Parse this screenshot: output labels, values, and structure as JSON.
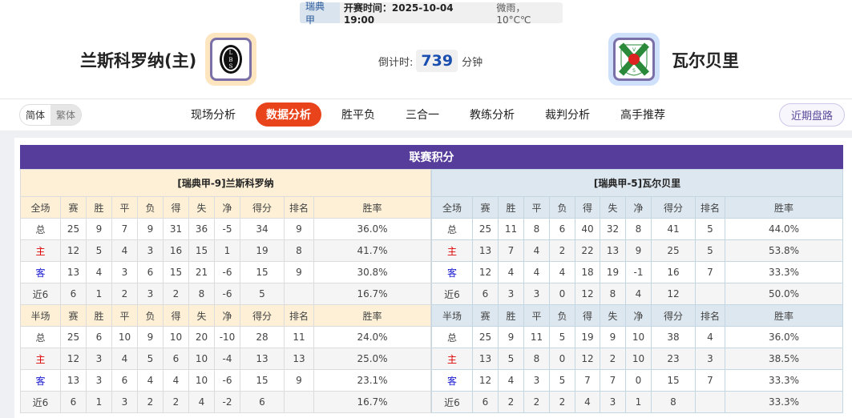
{
  "match": {
    "league": "瑞典甲",
    "time": "开赛时间：2025-10-04 19:00",
    "weather": "微雨， 10°C℃",
    "home": "兰斯科罗纳(主)",
    "away": "瓦尔贝里",
    "countdown_label": "倒计时:",
    "countdown_value": "739",
    "countdown_unit": "分钟"
  },
  "lang": {
    "simplified": "简体",
    "traditional": "繁体"
  },
  "tabs": [
    "现场分析",
    "数据分析",
    "胜平负",
    "三合一",
    "教练分析",
    "裁判分析",
    "高手推荐"
  ],
  "active_tab": "数据分析",
  "recent_button": "近期盘路",
  "colors": {
    "accent": "#e8431a",
    "title_bar": "#563d9c",
    "home_label": "#dd0000",
    "away_label": "#1a1ad0"
  },
  "standings": {
    "title": "联赛积分",
    "headers_full": [
      "全场",
      "赛",
      "胜",
      "平",
      "负",
      "得",
      "失",
      "净",
      "得分",
      "排名",
      "胜率"
    ],
    "headers_half": [
      "半场",
      "赛",
      "胜",
      "平",
      "负",
      "得",
      "失",
      "净",
      "得分",
      "排名",
      "胜率"
    ],
    "home": {
      "caption": "[瑞典甲-9]兰斯科罗纳",
      "full": [
        [
          "总",
          "25",
          "9",
          "7",
          "9",
          "31",
          "36",
          "-5",
          "34",
          "9",
          "36.0%"
        ],
        [
          "主",
          "12",
          "5",
          "4",
          "3",
          "16",
          "15",
          "1",
          "19",
          "8",
          "41.7%"
        ],
        [
          "客",
          "13",
          "4",
          "3",
          "6",
          "15",
          "21",
          "-6",
          "15",
          "9",
          "30.8%"
        ],
        [
          "近6",
          "6",
          "1",
          "2",
          "3",
          "2",
          "8",
          "-6",
          "5",
          "",
          "16.7%"
        ]
      ],
      "half": [
        [
          "总",
          "25",
          "6",
          "10",
          "9",
          "10",
          "20",
          "-10",
          "28",
          "11",
          "24.0%"
        ],
        [
          "主",
          "12",
          "3",
          "4",
          "5",
          "6",
          "10",
          "-4",
          "13",
          "13",
          "25.0%"
        ],
        [
          "客",
          "13",
          "3",
          "6",
          "4",
          "4",
          "10",
          "-6",
          "15",
          "9",
          "23.1%"
        ],
        [
          "近6",
          "6",
          "1",
          "3",
          "2",
          "2",
          "4",
          "-2",
          "6",
          "",
          "16.7%"
        ]
      ]
    },
    "away": {
      "caption": "[瑞典甲-5]瓦尔贝里",
      "full": [
        [
          "总",
          "25",
          "11",
          "8",
          "6",
          "40",
          "32",
          "8",
          "41",
          "5",
          "44.0%"
        ],
        [
          "主",
          "13",
          "7",
          "4",
          "2",
          "22",
          "13",
          "9",
          "25",
          "5",
          "53.8%"
        ],
        [
          "客",
          "12",
          "4",
          "4",
          "4",
          "18",
          "19",
          "-1",
          "16",
          "7",
          "33.3%"
        ],
        [
          "近6",
          "6",
          "3",
          "3",
          "0",
          "12",
          "8",
          "4",
          "12",
          "",
          "50.0%"
        ]
      ],
      "half": [
        [
          "总",
          "25",
          "9",
          "11",
          "5",
          "19",
          "9",
          "10",
          "38",
          "4",
          "36.0%"
        ],
        [
          "主",
          "13",
          "5",
          "8",
          "0",
          "12",
          "2",
          "10",
          "23",
          "3",
          "38.5%"
        ],
        [
          "客",
          "12",
          "4",
          "3",
          "5",
          "7",
          "7",
          "0",
          "15",
          "7",
          "33.3%"
        ],
        [
          "近6",
          "6",
          "2",
          "2",
          "2",
          "4",
          "3",
          "1",
          "8",
          "",
          "33.3%"
        ]
      ]
    }
  }
}
